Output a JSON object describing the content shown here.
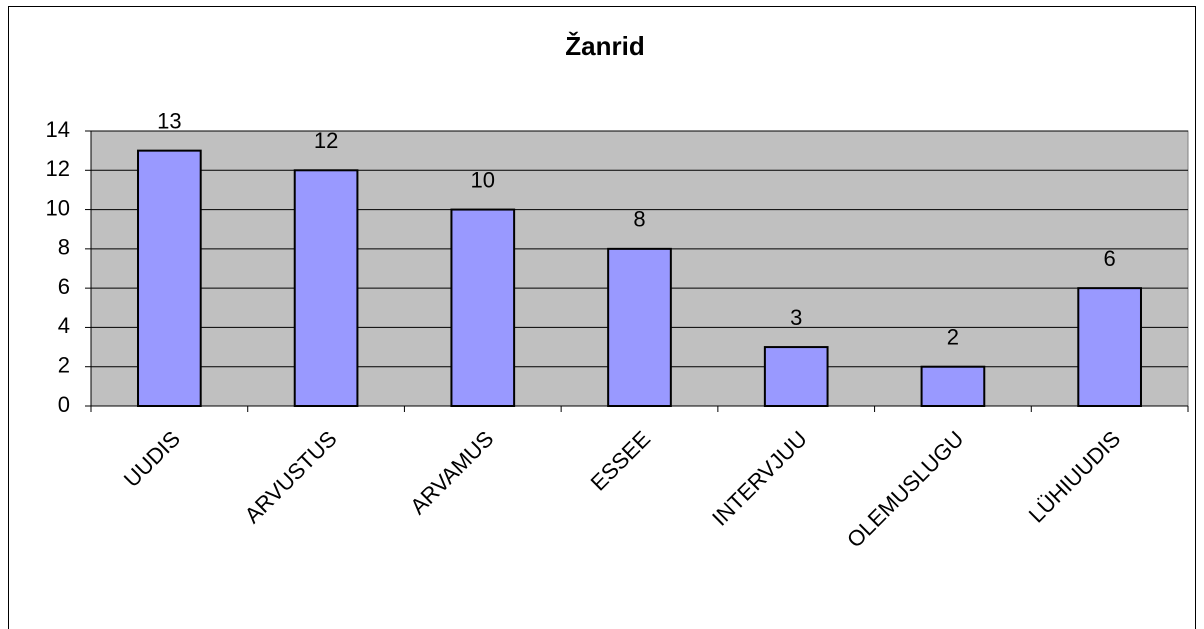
{
  "chart_data": {
    "type": "bar",
    "title": "Žanrid",
    "categories": [
      "UUDIS",
      "ARVUSTUS",
      "ARVAMUS",
      "ESSEE",
      "INTERVJUU",
      "OLEMUSLUGU",
      "LÜHIUUDIS"
    ],
    "values": [
      13,
      12,
      10,
      8,
      3,
      2,
      6
    ],
    "color": "#9999ff",
    "ylim": [
      0,
      14
    ],
    "yticks": [
      0,
      2,
      4,
      6,
      8,
      10,
      12,
      14
    ],
    "grid": true
  }
}
